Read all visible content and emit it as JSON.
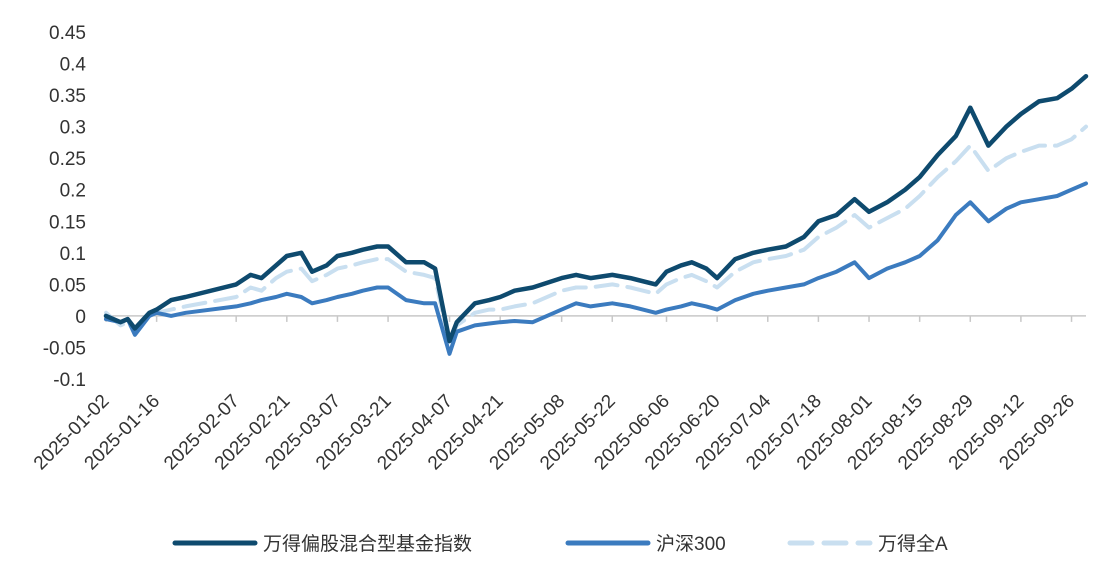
{
  "chart_data": {
    "type": "line",
    "title": "",
    "xlabel": "",
    "ylabel": "",
    "ylim": [
      -0.1,
      0.45
    ],
    "y_ticks": [
      -0.1,
      -0.05,
      0,
      0.05,
      0.1,
      0.15,
      0.2,
      0.25,
      0.3,
      0.35,
      0.4,
      0.45
    ],
    "y_tick_labels": [
      "-0.1",
      "-0.05",
      "0",
      "0.05",
      "0.1",
      "0.15",
      "0.2",
      "0.25",
      "0.3",
      "0.35",
      "0.4",
      "0.45"
    ],
    "x_range": [
      "2025-01-02",
      "2025-09-30"
    ],
    "x_tick_labels": [
      "2025-01-02",
      "2025-01-16",
      "2025-02-07",
      "2025-02-21",
      "2025-03-07",
      "2025-03-21",
      "2025-04-07",
      "2025-04-21",
      "2025-05-08",
      "2025-05-22",
      "2025-06-06",
      "2025-06-20",
      "2025-07-04",
      "2025-07-18",
      "2025-08-01",
      "2025-08-15",
      "2025-08-29",
      "2025-09-12",
      "2025-09-26"
    ],
    "grid": false,
    "legend_position": "bottom",
    "series": [
      {
        "name": "万得偏股混合型基金指数",
        "color": "#0e4a6e",
        "style": "solid",
        "x": [
          "2025-01-02",
          "2025-01-06",
          "2025-01-08",
          "2025-01-10",
          "2025-01-14",
          "2025-01-16",
          "2025-01-20",
          "2025-01-24",
          "2025-02-07",
          "2025-02-11",
          "2025-02-14",
          "2025-02-18",
          "2025-02-21",
          "2025-02-25",
          "2025-02-28",
          "2025-03-04",
          "2025-03-07",
          "2025-03-11",
          "2025-03-14",
          "2025-03-18",
          "2025-03-21",
          "2025-03-26",
          "2025-03-31",
          "2025-04-03",
          "2025-04-07",
          "2025-04-09",
          "2025-04-14",
          "2025-04-18",
          "2025-04-21",
          "2025-04-25",
          "2025-04-30",
          "2025-05-08",
          "2025-05-12",
          "2025-05-16",
          "2025-05-22",
          "2025-05-27",
          "2025-06-03",
          "2025-06-06",
          "2025-06-10",
          "2025-06-13",
          "2025-06-17",
          "2025-06-20",
          "2025-06-25",
          "2025-06-30",
          "2025-07-04",
          "2025-07-09",
          "2025-07-14",
          "2025-07-18",
          "2025-07-23",
          "2025-07-28",
          "2025-08-01",
          "2025-08-06",
          "2025-08-11",
          "2025-08-15",
          "2025-08-20",
          "2025-08-25",
          "2025-08-29",
          "2025-09-03",
          "2025-09-08",
          "2025-09-12",
          "2025-09-17",
          "2025-09-22",
          "2025-09-26",
          "2025-09-30"
        ],
        "values": [
          0.0,
          -0.01,
          -0.005,
          -0.02,
          0.005,
          0.01,
          0.025,
          0.03,
          0.05,
          0.065,
          0.06,
          0.08,
          0.095,
          0.1,
          0.07,
          0.08,
          0.095,
          0.1,
          0.105,
          0.11,
          0.11,
          0.085,
          0.085,
          0.075,
          -0.04,
          -0.01,
          0.02,
          0.025,
          0.03,
          0.04,
          0.045,
          0.06,
          0.065,
          0.06,
          0.065,
          0.06,
          0.05,
          0.07,
          0.08,
          0.085,
          0.075,
          0.06,
          0.09,
          0.1,
          0.105,
          0.11,
          0.125,
          0.15,
          0.16,
          0.185,
          0.165,
          0.18,
          0.2,
          0.22,
          0.255,
          0.285,
          0.33,
          0.27,
          0.3,
          0.32,
          0.34,
          0.345,
          0.36,
          0.38
        ]
      },
      {
        "name": "沪深300",
        "color": "#3b7bbf",
        "style": "solid",
        "x": [
          "2025-01-02",
          "2025-01-06",
          "2025-01-08",
          "2025-01-10",
          "2025-01-14",
          "2025-01-16",
          "2025-01-20",
          "2025-01-24",
          "2025-02-07",
          "2025-02-11",
          "2025-02-14",
          "2025-02-18",
          "2025-02-21",
          "2025-02-25",
          "2025-02-28",
          "2025-03-04",
          "2025-03-07",
          "2025-03-11",
          "2025-03-14",
          "2025-03-18",
          "2025-03-21",
          "2025-03-26",
          "2025-03-31",
          "2025-04-03",
          "2025-04-07",
          "2025-04-09",
          "2025-04-14",
          "2025-04-18",
          "2025-04-21",
          "2025-04-25",
          "2025-04-30",
          "2025-05-08",
          "2025-05-12",
          "2025-05-16",
          "2025-05-22",
          "2025-05-27",
          "2025-06-03",
          "2025-06-06",
          "2025-06-10",
          "2025-06-13",
          "2025-06-17",
          "2025-06-20",
          "2025-06-25",
          "2025-06-30",
          "2025-07-04",
          "2025-07-09",
          "2025-07-14",
          "2025-07-18",
          "2025-07-23",
          "2025-07-28",
          "2025-08-01",
          "2025-08-06",
          "2025-08-11",
          "2025-08-15",
          "2025-08-20",
          "2025-08-25",
          "2025-08-29",
          "2025-09-03",
          "2025-09-08",
          "2025-09-12",
          "2025-09-17",
          "2025-09-22",
          "2025-09-26",
          "2025-09-30"
        ],
        "values": [
          -0.005,
          -0.01,
          -0.005,
          -0.03,
          0.0,
          0.005,
          0.0,
          0.005,
          0.015,
          0.02,
          0.025,
          0.03,
          0.035,
          0.03,
          0.02,
          0.025,
          0.03,
          0.035,
          0.04,
          0.045,
          0.045,
          0.025,
          0.02,
          0.02,
          -0.06,
          -0.025,
          -0.015,
          -0.012,
          -0.01,
          -0.008,
          -0.01,
          0.01,
          0.02,
          0.015,
          0.02,
          0.015,
          0.005,
          0.01,
          0.015,
          0.02,
          0.015,
          0.01,
          0.025,
          0.035,
          0.04,
          0.045,
          0.05,
          0.06,
          0.07,
          0.085,
          0.06,
          0.075,
          0.085,
          0.095,
          0.12,
          0.16,
          0.18,
          0.15,
          0.17,
          0.18,
          0.185,
          0.19,
          0.2,
          0.21
        ]
      },
      {
        "name": "万得全A",
        "color": "#c9dff0",
        "style": "dashed",
        "x": [
          "2025-01-02",
          "2025-01-06",
          "2025-01-08",
          "2025-01-10",
          "2025-01-14",
          "2025-01-16",
          "2025-01-20",
          "2025-01-24",
          "2025-02-07",
          "2025-02-11",
          "2025-02-14",
          "2025-02-18",
          "2025-02-21",
          "2025-02-25",
          "2025-02-28",
          "2025-03-04",
          "2025-03-07",
          "2025-03-11",
          "2025-03-14",
          "2025-03-18",
          "2025-03-21",
          "2025-03-26",
          "2025-03-31",
          "2025-04-03",
          "2025-04-07",
          "2025-04-09",
          "2025-04-14",
          "2025-04-18",
          "2025-04-21",
          "2025-04-25",
          "2025-04-30",
          "2025-05-08",
          "2025-05-12",
          "2025-05-16",
          "2025-05-22",
          "2025-05-27",
          "2025-06-03",
          "2025-06-06",
          "2025-06-10",
          "2025-06-13",
          "2025-06-17",
          "2025-06-20",
          "2025-06-25",
          "2025-06-30",
          "2025-07-04",
          "2025-07-09",
          "2025-07-14",
          "2025-07-18",
          "2025-07-23",
          "2025-07-28",
          "2025-08-01",
          "2025-08-06",
          "2025-08-11",
          "2025-08-15",
          "2025-08-20",
          "2025-08-25",
          "2025-08-29",
          "2025-09-03",
          "2025-09-08",
          "2025-09-12",
          "2025-09-17",
          "2025-09-22",
          "2025-09-26",
          "2025-09-30"
        ],
        "values": [
          0.005,
          -0.015,
          -0.01,
          -0.025,
          0.0,
          0.005,
          0.01,
          0.015,
          0.03,
          0.045,
          0.04,
          0.06,
          0.07,
          0.075,
          0.055,
          0.065,
          0.075,
          0.08,
          0.085,
          0.09,
          0.09,
          0.07,
          0.065,
          0.06,
          -0.045,
          -0.015,
          0.005,
          0.01,
          0.01,
          0.015,
          0.02,
          0.04,
          0.045,
          0.045,
          0.05,
          0.045,
          0.035,
          0.05,
          0.06,
          0.065,
          0.055,
          0.045,
          0.07,
          0.085,
          0.09,
          0.095,
          0.105,
          0.125,
          0.14,
          0.16,
          0.14,
          0.155,
          0.17,
          0.19,
          0.22,
          0.245,
          0.27,
          0.23,
          0.25,
          0.26,
          0.27,
          0.27,
          0.28,
          0.3
        ]
      }
    ]
  }
}
